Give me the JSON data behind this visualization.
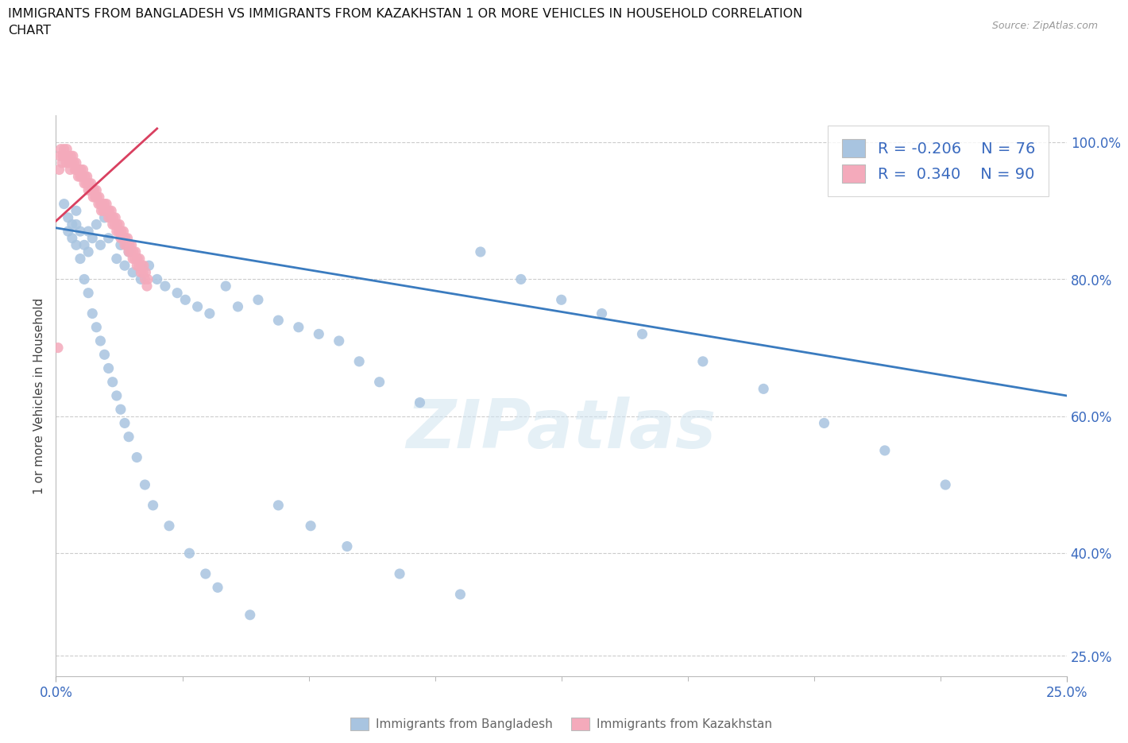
{
  "title_line1": "IMMIGRANTS FROM BANGLADESH VS IMMIGRANTS FROM KAZAKHSTAN 1 OR MORE VEHICLES IN HOUSEHOLD CORRELATION",
  "title_line2": "CHART",
  "source_text": "Source: ZipAtlas.com",
  "ylabel": "1 or more Vehicles in Household",
  "yticks": [
    25.0,
    40.0,
    60.0,
    80.0,
    100.0
  ],
  "ytick_labels": [
    "25.0%",
    "40.0%",
    "60.0%",
    "80.0%",
    "100.0%"
  ],
  "xtick_left": "0.0%",
  "xtick_right": "25.0%",
  "xrange": [
    0.0,
    25.0
  ],
  "yrange": [
    22.0,
    104.0
  ],
  "watermark": "ZIPatlas",
  "blue_color": "#a8c4e0",
  "pink_color": "#f4aabb",
  "trendline_blue": "#3a7bbf",
  "trendline_pink": "#d94060",
  "legend_text_color": "#3a6abf",
  "grid_color": "#cccccc",
  "background_color": "#ffffff",
  "legend_label_blue": "Immigrants from Bangladesh",
  "legend_label_pink": "Immigrants from Kazakhstan",
  "R_blue": -0.206,
  "N_blue": 76,
  "R_pink": 0.34,
  "N_pink": 90,
  "blue_scatter_x": [
    0.3,
    0.4,
    0.5,
    0.5,
    0.6,
    0.7,
    0.8,
    0.8,
    0.9,
    1.0,
    1.1,
    1.2,
    1.3,
    1.5,
    1.6,
    1.7,
    1.8,
    1.9,
    2.1,
    2.3,
    2.5,
    2.7,
    3.0,
    3.2,
    3.5,
    3.8,
    4.2,
    4.5,
    5.0,
    5.5,
    6.0,
    6.5,
    7.0,
    7.5,
    8.0,
    9.0,
    10.5,
    11.5,
    12.5,
    13.5,
    14.5,
    16.0,
    17.5,
    19.0,
    20.5,
    22.0,
    0.2,
    0.3,
    0.4,
    0.5,
    0.6,
    0.7,
    0.8,
    0.9,
    1.0,
    1.1,
    1.2,
    1.3,
    1.4,
    1.5,
    1.6,
    1.7,
    1.8,
    2.0,
    2.2,
    2.4,
    2.8,
    3.3,
    3.7,
    4.0,
    4.8,
    5.5,
    6.3,
    7.2,
    8.5,
    10.0
  ],
  "blue_scatter_y": [
    87,
    86,
    90,
    88,
    87,
    85,
    87,
    84,
    86,
    88,
    85,
    89,
    86,
    83,
    85,
    82,
    84,
    81,
    80,
    82,
    80,
    79,
    78,
    77,
    76,
    75,
    79,
    76,
    77,
    74,
    73,
    72,
    71,
    68,
    65,
    62,
    84,
    80,
    77,
    75,
    72,
    68,
    64,
    59,
    55,
    50,
    91,
    89,
    88,
    85,
    83,
    80,
    78,
    75,
    73,
    71,
    69,
    67,
    65,
    63,
    61,
    59,
    57,
    54,
    50,
    47,
    44,
    40,
    37,
    35,
    31,
    47,
    44,
    41,
    37,
    34
  ],
  "pink_scatter_x": [
    0.05,
    0.08,
    0.1,
    0.12,
    0.15,
    0.17,
    0.2,
    0.22,
    0.25,
    0.27,
    0.3,
    0.32,
    0.35,
    0.37,
    0.4,
    0.42,
    0.45,
    0.47,
    0.5,
    0.52,
    0.55,
    0.57,
    0.6,
    0.62,
    0.65,
    0.67,
    0.7,
    0.72,
    0.75,
    0.77,
    0.8,
    0.82,
    0.85,
    0.87,
    0.9,
    0.92,
    0.95,
    0.97,
    1.0,
    1.02,
    1.05,
    1.07,
    1.1,
    1.12,
    1.15,
    1.17,
    1.2,
    1.22,
    1.25,
    1.27,
    1.3,
    1.32,
    1.35,
    1.37,
    1.4,
    1.42,
    1.45,
    1.47,
    1.5,
    1.52,
    1.55,
    1.57,
    1.6,
    1.62,
    1.65,
    1.67,
    1.7,
    1.72,
    1.75,
    1.77,
    1.8,
    1.82,
    1.85,
    1.87,
    1.9,
    1.92,
    1.95,
    1.97,
    2.0,
    2.02,
    2.05,
    2.07,
    2.1,
    2.12,
    2.15,
    2.17,
    2.2,
    2.22,
    2.25,
    2.27
  ],
  "pink_scatter_y": [
    70,
    96,
    98,
    99,
    97,
    98,
    99,
    98,
    97,
    99,
    98,
    97,
    96,
    98,
    97,
    98,
    97,
    96,
    97,
    96,
    95,
    96,
    95,
    96,
    95,
    96,
    94,
    95,
    94,
    95,
    93,
    94,
    93,
    94,
    93,
    92,
    93,
    92,
    93,
    92,
    91,
    92,
    91,
    90,
    91,
    90,
    91,
    90,
    91,
    90,
    89,
    90,
    89,
    90,
    88,
    89,
    88,
    89,
    87,
    88,
    87,
    88,
    86,
    87,
    86,
    87,
    85,
    86,
    85,
    86,
    84,
    85,
    84,
    85,
    83,
    84,
    83,
    84,
    82,
    83,
    82,
    83,
    81,
    82,
    81,
    82,
    80,
    81,
    79,
    80
  ],
  "blue_trend_x0": 0.0,
  "blue_trend_x1": 25.0,
  "blue_trend_y0": 87.5,
  "blue_trend_y1": 63.0,
  "pink_trend_x0": 0.0,
  "pink_trend_x1": 2.5,
  "pink_trend_y0": 88.5,
  "pink_trend_y1": 102.0
}
